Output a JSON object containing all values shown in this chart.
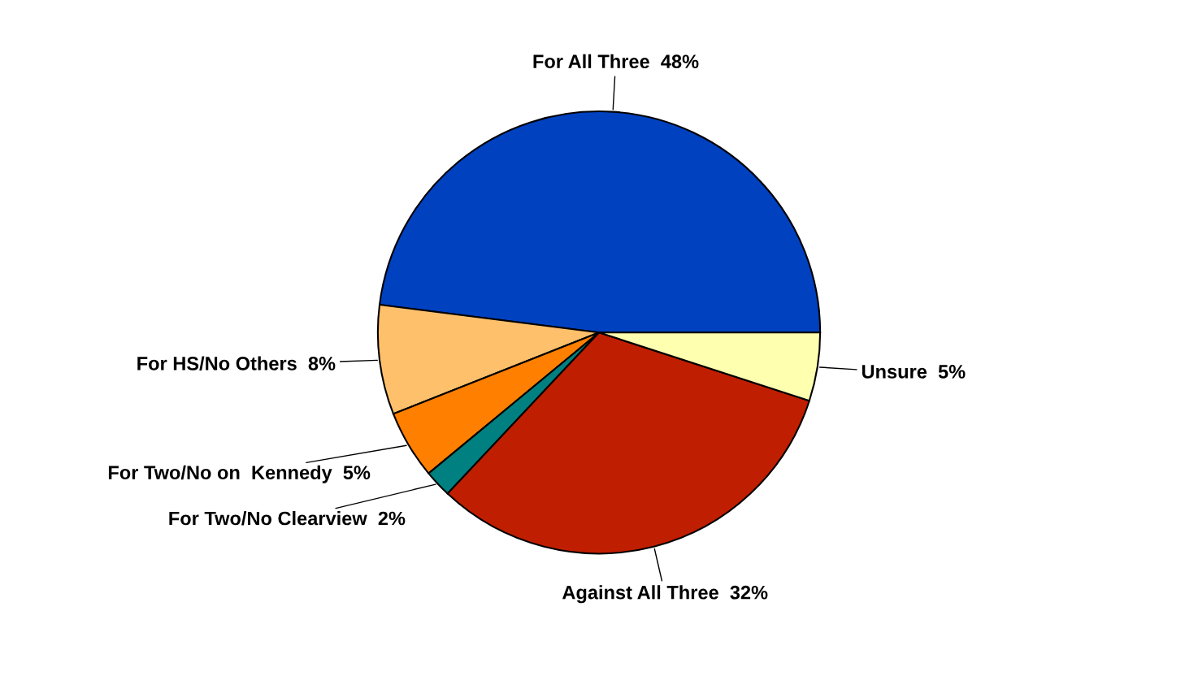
{
  "chart_data": {
    "type": "pie",
    "categories": [
      "For All Three",
      "For HS/No Others",
      "For Two/No on  Kennedy",
      "For Two/No Clearview",
      "Against All Three",
      "Unsure"
    ],
    "values": [
      48,
      8,
      5,
      2,
      32,
      5
    ],
    "value_labels": [
      "48%",
      "8%",
      "5%",
      "2%",
      "32%",
      "5%"
    ],
    "colors": [
      "#0041c0",
      "#ffc06b",
      "#ff7f00",
      "#008080",
      "#c01e00",
      "#ffffb0"
    ],
    "legend": false
  }
}
